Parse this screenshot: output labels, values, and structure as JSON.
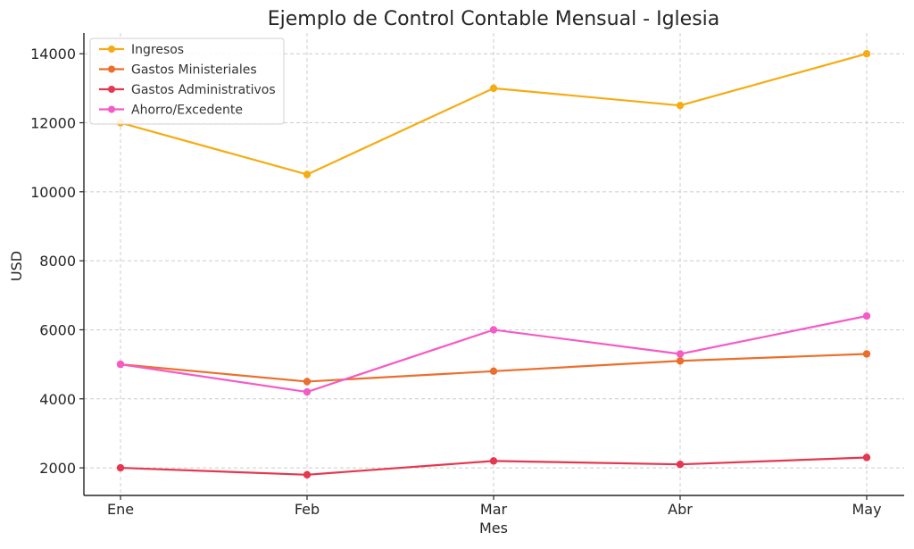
{
  "chart_data": {
    "type": "line",
    "title": "Ejemplo de Control Contable Mensual - Iglesia",
    "xlabel": "Mes",
    "ylabel": "USD",
    "categories": [
      "Ene",
      "Feb",
      "Mar",
      "Abr",
      "May"
    ],
    "ylim": [
      1200,
      14600
    ],
    "yticks": [
      2000,
      4000,
      6000,
      8000,
      10000,
      12000,
      14000
    ],
    "grid": true,
    "legend_position": "top-left",
    "series": [
      {
        "name": "Ingresos",
        "color": "#f5ac14",
        "values": [
          12000,
          10500,
          13000,
          12500,
          14000
        ]
      },
      {
        "name": "Gastos Ministeriales",
        "color": "#eb6f2c",
        "values": [
          5000,
          4500,
          4800,
          5100,
          5300
        ]
      },
      {
        "name": "Gastos Administrativos",
        "color": "#e5374f",
        "values": [
          2000,
          1800,
          2200,
          2100,
          2300
        ]
      },
      {
        "name": "Ahorro/Excedente",
        "color": "#f55bc6",
        "values": [
          5000,
          4200,
          6000,
          5300,
          6400
        ]
      }
    ]
  }
}
